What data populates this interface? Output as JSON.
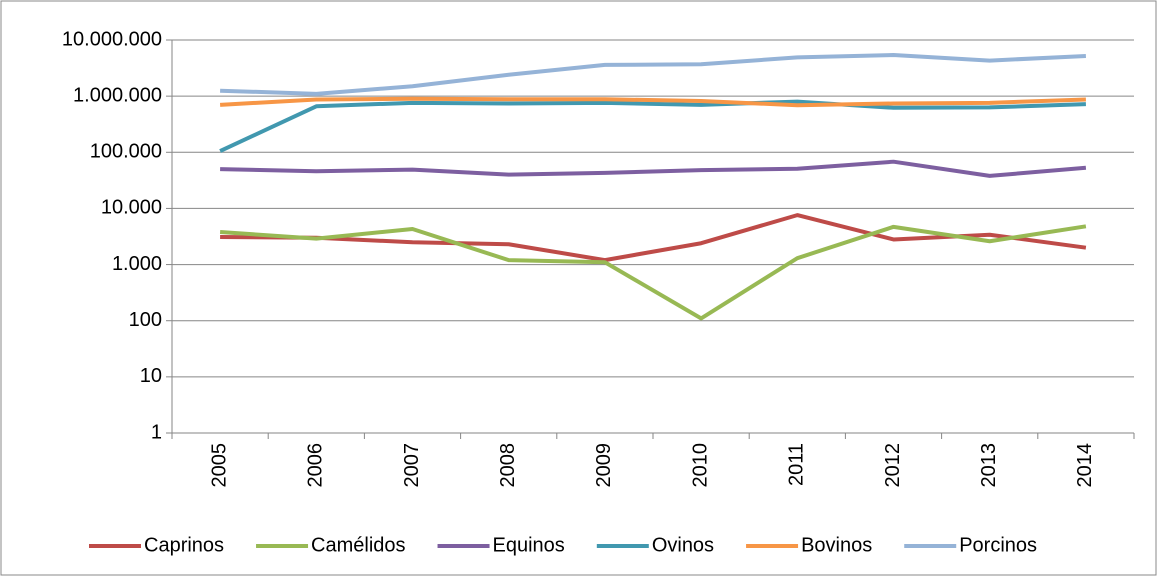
{
  "chart_data": {
    "type": "line",
    "y_scale": "log",
    "grid": true,
    "legend_position": "bottom",
    "categories": [
      "2005",
      "2006",
      "2007",
      "2008",
      "2009",
      "2010",
      "2011",
      "2012",
      "2013",
      "2014"
    ],
    "ylim": [
      1,
      10000000
    ],
    "yticks": [
      1,
      10,
      100,
      {
        "value": 1000,
        "label": "1.000"
      },
      {
        "value": 10000,
        "label": "10.000"
      },
      {
        "value": 100000,
        "label": "100.000"
      },
      {
        "value": 1000000,
        "label": "1.000.000"
      },
      {
        "value": 10000000,
        "label": "10.000.000"
      }
    ],
    "series": [
      {
        "name": "Caprinos",
        "color": "#be4b48",
        "values": [
          3100,
          3000,
          2500,
          2300,
          1200,
          2400,
          7600,
          2800,
          3400,
          2000
        ]
      },
      {
        "name": "Camélidos",
        "color": "#98b954",
        "values": [
          3800,
          2900,
          4300,
          1200,
          1100,
          110,
          1300,
          4700,
          2600,
          4800
        ]
      },
      {
        "name": "Equinos",
        "color": "#7d5fa0",
        "values": [
          50000,
          46000,
          49000,
          40000,
          43000,
          48000,
          51000,
          68000,
          38000,
          53000
        ]
      },
      {
        "name": "Ovinos",
        "color": "#4198af",
        "values": [
          105000,
          660000,
          760000,
          740000,
          760000,
          700000,
          800000,
          620000,
          630000,
          720000
        ]
      },
      {
        "name": "Bovinos",
        "color": "#f79646",
        "values": [
          700000,
          870000,
          900000,
          880000,
          880000,
          820000,
          690000,
          740000,
          760000,
          870000
        ]
      },
      {
        "name": "Porcinos",
        "color": "#95b3d7",
        "values": [
          1250000,
          1100000,
          1500000,
          2400000,
          3600000,
          3700000,
          4900000,
          5400000,
          4300000,
          5200000
        ]
      }
    ]
  }
}
